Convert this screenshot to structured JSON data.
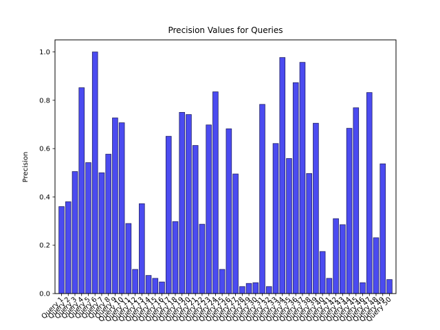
{
  "chart_data": {
    "type": "bar",
    "title": "Precision Values for Queries",
    "xlabel": "",
    "ylabel": "Precision",
    "ylim": [
      0,
      1.05
    ],
    "yticks": [
      "0.0",
      "0.2",
      "0.4",
      "0.6",
      "0.8",
      "1.0"
    ],
    "grid": false,
    "bar_color": "#4B4BF0",
    "bar_edge_color": "#222266",
    "categories": [
      "Query 1",
      "Query 2",
      "Query 3",
      "Query 4",
      "Query 5",
      "Query 6",
      "Query 7",
      "Query 8",
      "Query 9",
      "Query 10",
      "Query 11",
      "Query 12",
      "Query 13",
      "Query 14",
      "Query 15",
      "Query 16",
      "Query 17",
      "Query 18",
      "Query 19",
      "Query 20",
      "Query 21",
      "Query 22",
      "Query 23",
      "Query 24",
      "Query 25",
      "Query 26",
      "Query 27",
      "Query 28",
      "Query 29",
      "Query 30",
      "Query 31",
      "Query 32",
      "Query 33",
      "Query 34",
      "Query 35",
      "Query 36",
      "Query 37",
      "Query 38",
      "Query 39",
      "Query 40",
      "Query 41",
      "Query 42",
      "Query 43",
      "Query 44",
      "Query 45",
      "Query 46",
      "Query 47",
      "Query 48",
      "Query 49",
      "Query 50"
    ],
    "values": [
      0.36,
      0.38,
      0.505,
      0.852,
      0.542,
      1.0,
      0.5,
      0.577,
      0.727,
      0.707,
      0.29,
      0.1,
      0.372,
      0.075,
      0.063,
      0.048,
      0.651,
      0.298,
      0.75,
      0.741,
      0.613,
      0.287,
      0.698,
      0.835,
      0.1,
      0.682,
      0.495,
      0.029,
      0.042,
      0.045,
      0.783,
      0.029,
      0.621,
      0.977,
      0.559,
      0.873,
      0.957,
      0.497,
      0.705,
      0.174,
      0.063,
      0.31,
      0.285,
      0.684,
      0.769,
      0.045,
      0.832,
      0.231,
      0.537,
      0.058
    ]
  }
}
